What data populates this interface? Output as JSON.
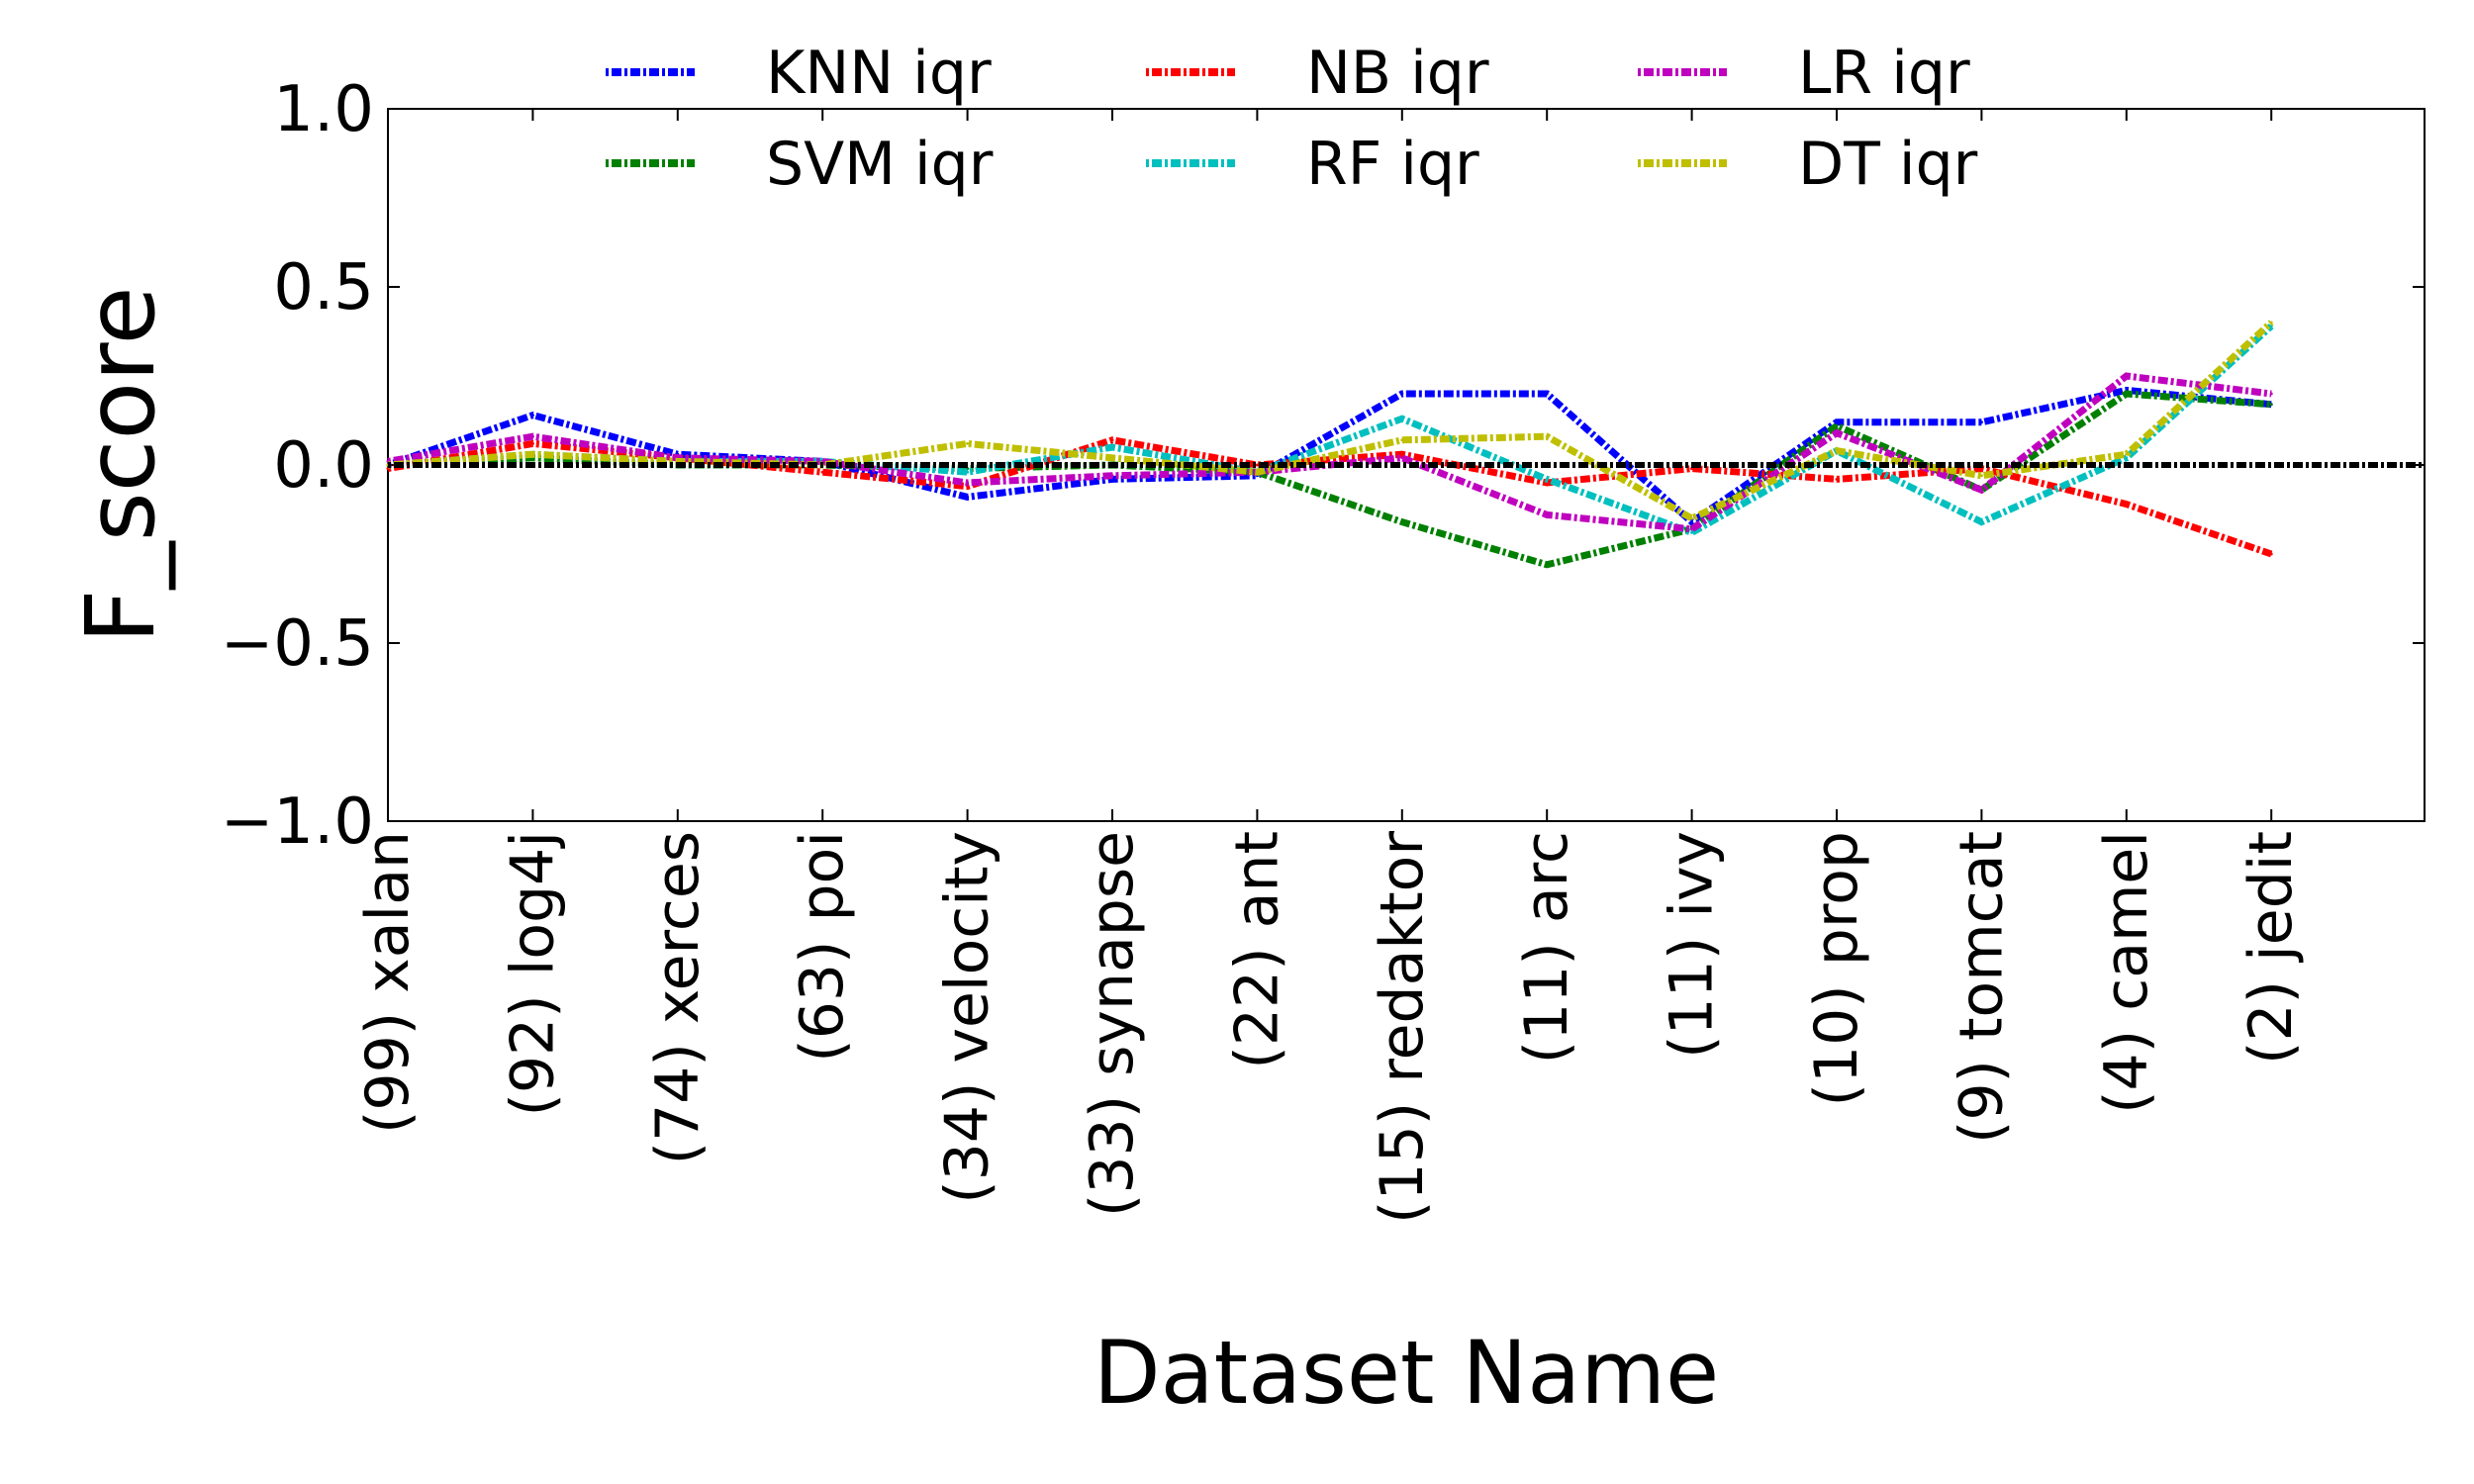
{
  "chart_data": {
    "type": "line",
    "title": "",
    "xlabel": "Dataset Name",
    "ylabel": "F_score",
    "ylim": [
      -1.0,
      1.0
    ],
    "yticks": [
      1.0,
      0.5,
      0.0,
      -0.5,
      -1.0
    ],
    "ytick_labels": [
      "1.0",
      "0.5",
      "0.0",
      "−0.5",
      "−1.0"
    ],
    "grid": false,
    "legend_position": "top",
    "categories": [
      "(99) xalan",
      "(92) log4j",
      "(74) xerces",
      "(63) poi",
      "(34) velocity",
      "(33) synapse",
      "(22) ant",
      "(15) redaktor",
      "(11) arc",
      "(11) ivy",
      "(10) prop",
      "(9) tomcat",
      "(4) camel",
      "(2) jedit"
    ],
    "series": [
      {
        "name": "KNN iqr",
        "color": "#0000ff",
        "values": [
          0.0,
          0.14,
          0.03,
          0.01,
          -0.09,
          -0.04,
          -0.03,
          0.2,
          0.2,
          -0.16,
          0.12,
          0.12,
          0.21,
          0.17
        ]
      },
      {
        "name": "SVM iqr",
        "color": "#008000",
        "values": [
          0.0,
          0.02,
          0.0,
          0.0,
          -0.01,
          0.0,
          -0.02,
          -0.16,
          -0.28,
          -0.18,
          0.11,
          -0.07,
          0.2,
          0.17
        ]
      },
      {
        "name": "NB iqr",
        "color": "#ff0000",
        "values": [
          -0.01,
          0.06,
          0.02,
          -0.02,
          -0.06,
          0.07,
          0.0,
          0.03,
          -0.05,
          -0.01,
          -0.04,
          -0.01,
          -0.11,
          -0.25
        ]
      },
      {
        "name": "RF iqr",
        "color": "#00bfbf",
        "values": [
          0.0,
          0.03,
          0.01,
          0.01,
          -0.02,
          0.05,
          -0.02,
          0.13,
          -0.04,
          -0.19,
          0.04,
          -0.16,
          0.02,
          0.39
        ]
      },
      {
        "name": "LR iqr",
        "color": "#bf00bf",
        "values": [
          0.01,
          0.08,
          0.02,
          0.01,
          -0.05,
          -0.03,
          -0.02,
          0.02,
          -0.14,
          -0.18,
          0.09,
          -0.07,
          0.25,
          0.2
        ]
      },
      {
        "name": "DT iqr",
        "color": "#bfbf00",
        "values": [
          0.0,
          0.03,
          0.01,
          0.0,
          0.06,
          0.02,
          -0.02,
          0.07,
          0.08,
          -0.15,
          0.04,
          -0.03,
          0.03,
          0.4
        ]
      }
    ],
    "reference_line": {
      "value": 0.0,
      "color": "#000000"
    }
  }
}
